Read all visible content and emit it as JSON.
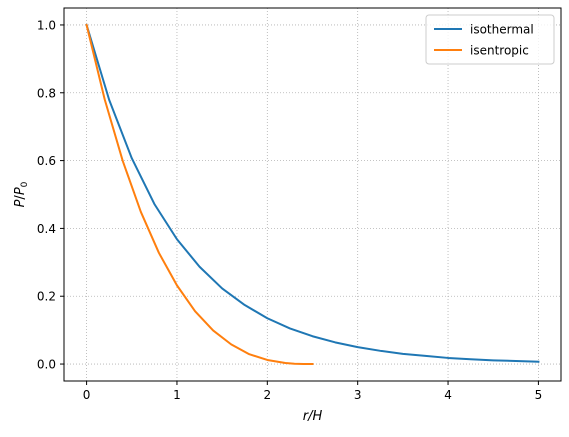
{
  "chart_data": {
    "type": "line",
    "xlabel": "r/H",
    "ylabel": "P/P0",
    "xlim": [
      -0.25,
      5.25
    ],
    "ylim": [
      -0.05,
      1.05
    ],
    "x_ticks": [
      0,
      1,
      2,
      3,
      4,
      5
    ],
    "y_ticks": [
      0.0,
      0.2,
      0.4,
      0.6,
      0.8,
      1.0
    ],
    "x_tick_labels": [
      "0",
      "1",
      "2",
      "3",
      "4",
      "5"
    ],
    "y_tick_labels": [
      "0.0",
      "0.2",
      "0.4",
      "0.6",
      "0.8",
      "1.0"
    ],
    "grid": true,
    "legend_position": "top-right",
    "series": [
      {
        "name": "isothermal",
        "color": "#1f77b4",
        "x": [
          0,
          0.25,
          0.5,
          0.75,
          1.0,
          1.25,
          1.5,
          1.75,
          2.0,
          2.25,
          2.5,
          2.75,
          3.0,
          3.25,
          3.5,
          3.75,
          4.0,
          4.25,
          4.5,
          4.75,
          5.0
        ],
        "y": [
          1.0,
          0.779,
          0.607,
          0.472,
          0.368,
          0.287,
          0.223,
          0.174,
          0.135,
          0.105,
          0.082,
          0.064,
          0.05,
          0.039,
          0.03,
          0.024,
          0.018,
          0.014,
          0.011,
          0.009,
          0.007
        ]
      },
      {
        "name": "isentropic",
        "color": "#ff7f0e",
        "x": [
          0,
          0.2,
          0.4,
          0.6,
          0.8,
          1.0,
          1.2,
          1.4,
          1.6,
          1.8,
          2.0,
          2.2,
          2.3,
          2.4,
          2.5
        ],
        "y": [
          1.0,
          0.781,
          0.599,
          0.449,
          0.328,
          0.232,
          0.156,
          0.099,
          0.058,
          0.029,
          0.012,
          0.003,
          0.001,
          0.0,
          0.0
        ]
      }
    ]
  }
}
